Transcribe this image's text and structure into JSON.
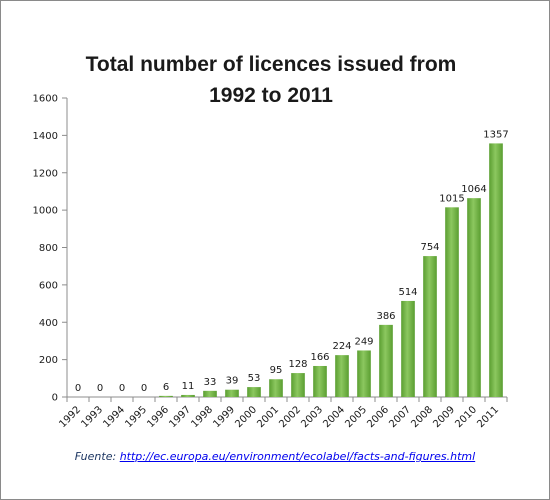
{
  "chart_data": {
    "type": "bar",
    "title_lines": [
      "Total number of licences issued from",
      "1992 to 2011"
    ],
    "xlabel": "",
    "ylabel": "",
    "categories": [
      "1992",
      "1993",
      "1994",
      "1995",
      "1996",
      "1997",
      "1998",
      "1999",
      "2000",
      "2001",
      "2002",
      "2003",
      "2004",
      "2005",
      "2006",
      "2007",
      "2008",
      "2009",
      "2010",
      "2011"
    ],
    "values": [
      0,
      0,
      0,
      0,
      6,
      11,
      33,
      39,
      53,
      95,
      128,
      166,
      224,
      249,
      386,
      514,
      754,
      1015,
      1064,
      1357
    ],
    "data_labels": [
      "0",
      "0",
      "0",
      "0",
      "6",
      "11",
      "33",
      "39",
      "53",
      "95",
      "128",
      "166",
      "224",
      "249",
      "386",
      "514",
      "754",
      "1015",
      "1064",
      "1357"
    ],
    "ylim": [
      0,
      1600
    ],
    "yticks": [
      0,
      200,
      400,
      600,
      800,
      1000,
      1200,
      1400,
      1600
    ],
    "ytick_labels": [
      "0",
      "200",
      "400",
      "600",
      "800",
      "1000",
      "1200",
      "1400",
      "1600"
    ],
    "bar_color": "#5a9e31",
    "bar_highlight": "#8cc75f",
    "grid": false,
    "legend": "none"
  },
  "source": {
    "prefix": "Fuente: ",
    "url": "http://ec.europa.eu/environment/ecolabel/facts-and-figures.html"
  }
}
